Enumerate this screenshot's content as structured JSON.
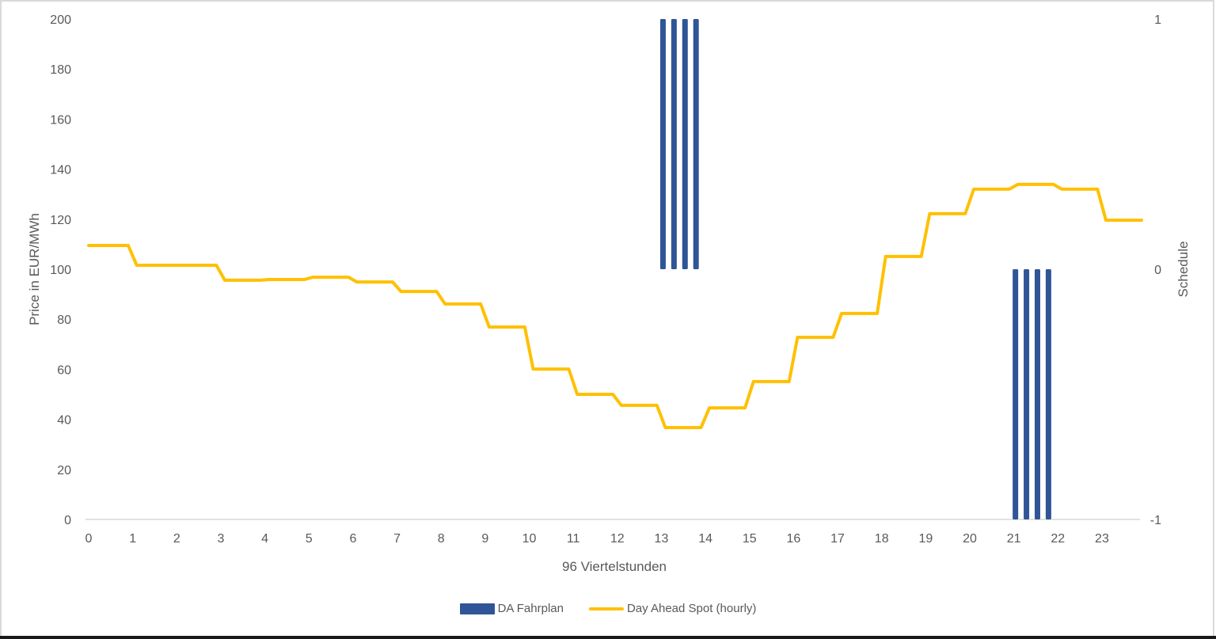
{
  "chart_data": {
    "type": "bar+line",
    "title": "",
    "xlabel": "96 Viertelstunden",
    "ylabel": "Price in EUR/MWh",
    "y2label": "Schedule",
    "ylim": [
      0,
      200
    ],
    "y2lim": [
      -1,
      1
    ],
    "yticks": [
      0,
      20,
      40,
      60,
      80,
      100,
      120,
      140,
      160,
      180,
      200
    ],
    "y2ticks": [
      -1,
      0,
      1
    ],
    "xticks": [
      0,
      1,
      2,
      3,
      4,
      5,
      6,
      7,
      8,
      9,
      10,
      11,
      12,
      13,
      14,
      15,
      16,
      17,
      18,
      19,
      20,
      21,
      22,
      23
    ],
    "grid": false,
    "legend_position": "bottom",
    "series": [
      {
        "name": "DA Fahrplan",
        "type": "bar",
        "axis": "secondary",
        "color": "#2f5597",
        "points": [
          {
            "x": 13.0,
            "value": 1
          },
          {
            "x": 13.25,
            "value": 1
          },
          {
            "x": 13.5,
            "value": 1
          },
          {
            "x": 13.75,
            "value": 1
          },
          {
            "x": 21.0,
            "value": -1
          },
          {
            "x": 21.25,
            "value": -1
          },
          {
            "x": 21.5,
            "value": -1
          },
          {
            "x": 21.75,
            "value": -1
          }
        ]
      },
      {
        "name": "Day Ahead Spot (hourly)",
        "type": "line",
        "axis": "primary",
        "color": "#ffc000",
        "hours": [
          0,
          1,
          2,
          3,
          4,
          5,
          6,
          7,
          8,
          9,
          10,
          11,
          12,
          13,
          14,
          15,
          16,
          17,
          18,
          19,
          20,
          21,
          22,
          23
        ],
        "values": [
          109.5,
          101.6,
          101.6,
          95.6,
          95.9,
          96.8,
          94.9,
          91.1,
          86.1,
          76.9,
          60.1,
          50.0,
          45.6,
          36.7,
          44.6,
          55.1,
          72.8,
          82.3,
          105.1,
          122.2,
          132.0,
          133.9,
          132.0,
          119.6
        ]
      }
    ]
  },
  "legend": {
    "bar_label": "DA Fahrplan",
    "line_label": "Day Ahead Spot (hourly)"
  },
  "axes": {
    "x_title": "96 Viertelstunden",
    "y_title": "Price in EUR/MWh",
    "y2_title": "Schedule"
  }
}
